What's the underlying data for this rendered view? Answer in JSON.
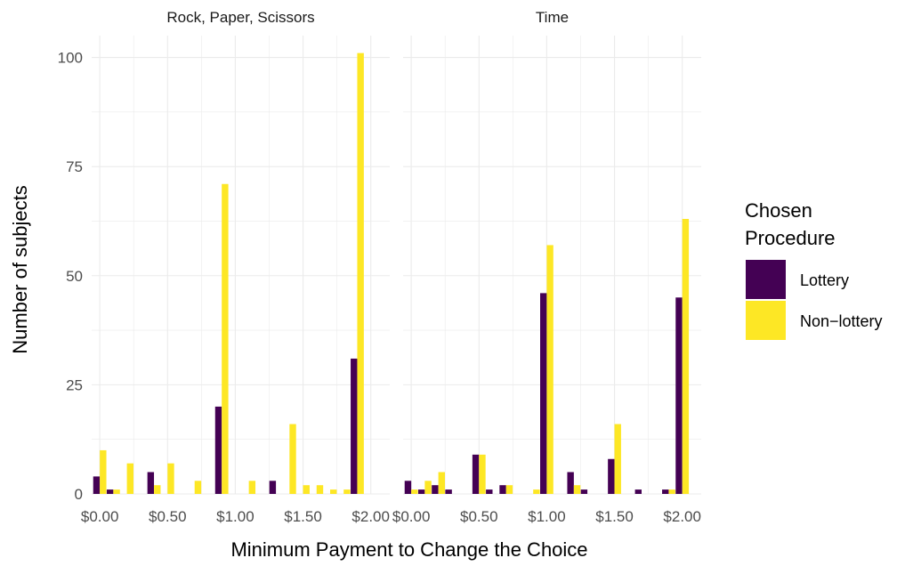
{
  "chart_data": {
    "type": "bar",
    "xlabel": "Minimum Payment to Change the Choice",
    "ylabel": "Number of subjects",
    "ylim": [
      0,
      105
    ],
    "yticks": [
      0,
      25,
      50,
      75,
      100
    ],
    "xlim": [
      -0.06,
      2.14
    ],
    "xticks": [
      0,
      0.5,
      1,
      1.5,
      2
    ],
    "xtick_labels": [
      "$0.00",
      "$0.50",
      "$1.00",
      "$1.50",
      "$2.00"
    ],
    "x": [
      0,
      0.1,
      0.2,
      0.3,
      0.4,
      0.5,
      0.6,
      0.7,
      0.8,
      0.9,
      1.0,
      1.1,
      1.2,
      1.3,
      1.4,
      1.5,
      1.6,
      1.7,
      1.8,
      1.9,
      2.0
    ],
    "grid": true,
    "legend": {
      "title_lines": [
        "Chosen",
        "Procedure"
      ],
      "position": "right",
      "entries": [
        {
          "name": "Lottery",
          "color": "#440154"
        },
        {
          "name": "Non−lottery",
          "color": "#FDE725"
        }
      ]
    },
    "panels": [
      {
        "title": "Rock, Paper, Scissors",
        "series": [
          {
            "name": "Lottery",
            "values": [
              4,
              1,
              0,
              0,
              5,
              0,
              0,
              0,
              0,
              20,
              0,
              0,
              0,
              3,
              0,
              0,
              0,
              0,
              0,
              31,
              0
            ]
          },
          {
            "name": "Non−lottery",
            "values": [
              10,
              1,
              7,
              0,
              2,
              7,
              0,
              3,
              0,
              71,
              0,
              3,
              0,
              0,
              16,
              2,
              2,
              1,
              1,
              101,
              0
            ]
          }
        ]
      },
      {
        "title": "Time",
        "series": [
          {
            "name": "Lottery",
            "values": [
              3,
              1,
              2,
              1,
              0,
              9,
              1,
              2,
              0,
              0,
              46,
              0,
              5,
              1,
              0,
              8,
              0,
              1,
              0,
              1,
              45
            ]
          },
          {
            "name": "Non−lottery",
            "values": [
              1,
              3,
              5,
              0,
              0,
              9,
              0,
              2,
              0,
              1,
              57,
              0,
              2,
              0,
              0,
              16,
              0,
              0,
              0,
              1,
              63
            ]
          }
        ]
      }
    ]
  }
}
